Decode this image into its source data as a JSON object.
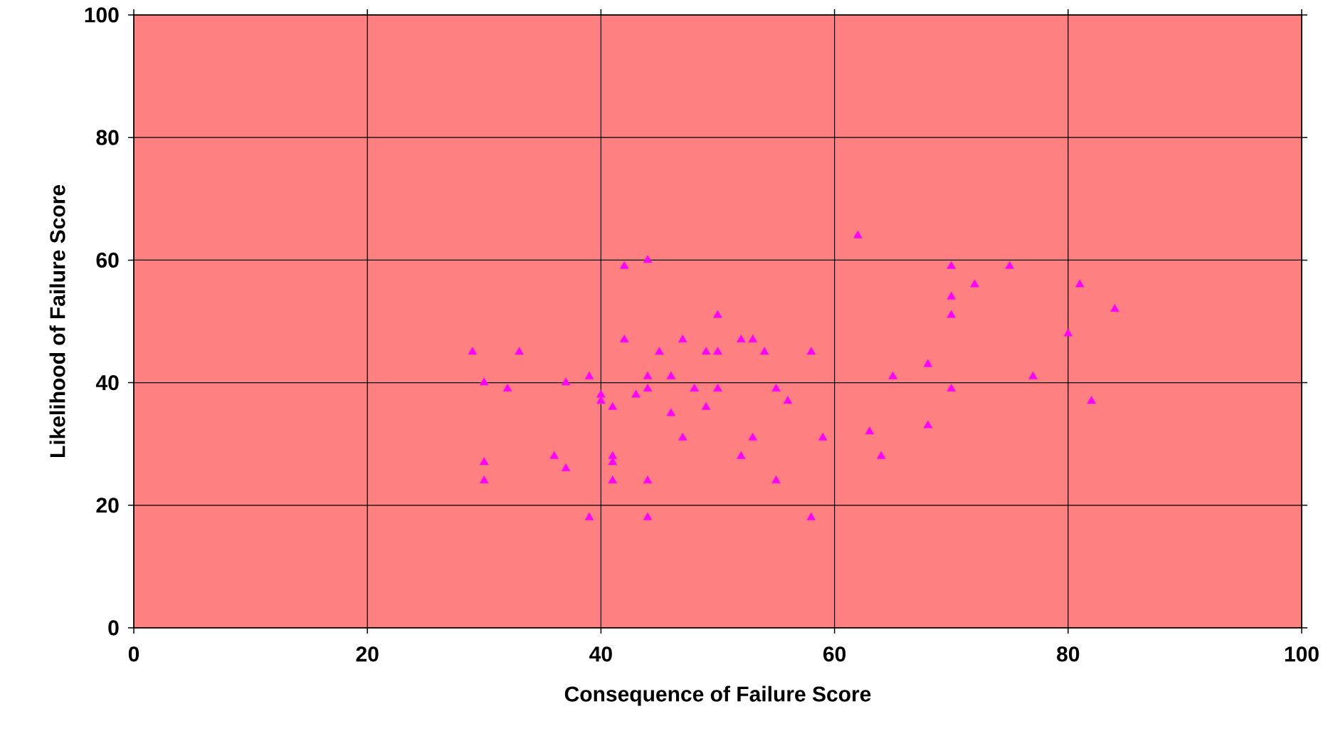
{
  "chart_data": {
    "type": "scatter",
    "xlabel": "Consequence of Failure Score",
    "ylabel": "Likelihood of Failure Score",
    "xlim": [
      0,
      100
    ],
    "ylim": [
      0,
      100
    ],
    "xticks": [
      0,
      20,
      40,
      60,
      80,
      100
    ],
    "yticks": [
      0,
      20,
      40,
      60,
      80,
      100
    ],
    "grid": true,
    "marker": "triangle",
    "series": [
      {
        "color": "#ff00ff",
        "x": [
          29,
          30,
          30,
          30,
          32,
          33,
          36,
          37,
          37,
          39,
          39,
          40,
          40,
          41,
          41,
          41,
          41,
          42,
          42,
          43,
          44,
          44,
          44,
          44,
          44,
          45,
          46,
          46,
          47,
          47,
          48,
          49,
          49,
          50,
          50,
          50,
          52,
          52,
          53,
          53,
          54,
          55,
          55,
          56,
          58,
          58,
          59,
          62,
          63,
          64,
          65,
          68,
          68,
          70,
          70,
          70,
          70,
          72,
          75,
          77,
          80,
          81,
          82,
          84
        ],
        "values": [
          45,
          40,
          27,
          24,
          39,
          45,
          28,
          40,
          26,
          41,
          18,
          38,
          37,
          36,
          28,
          27,
          24,
          59,
          47,
          38,
          60,
          41,
          39,
          24,
          18,
          45,
          41,
          35,
          47,
          31,
          39,
          45,
          36,
          51,
          45,
          39,
          47,
          28,
          47,
          31,
          45,
          39,
          24,
          37,
          45,
          18,
          31,
          64,
          32,
          28,
          41,
          43,
          33,
          59,
          54,
          51,
          39,
          56,
          59,
          41,
          48,
          56,
          37,
          52
        ]
      }
    ]
  }
}
